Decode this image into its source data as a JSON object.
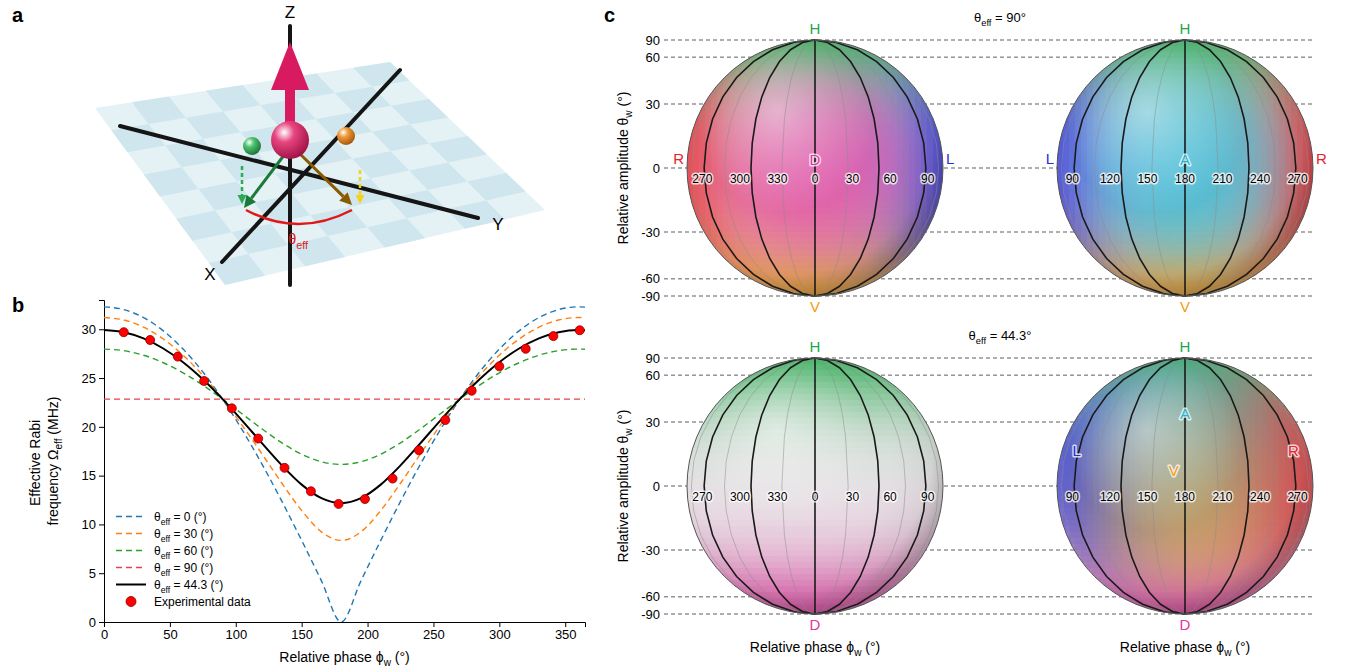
{
  "diagram": {
    "panel_label": "a",
    "axis_labels": {
      "z": "Z",
      "y": "Y",
      "x": "X"
    },
    "angle_label": "θeff"
  },
  "chart_data": {
    "panel_label": "b",
    "type": "line",
    "xlabel": "Relative phase ϕw (°)",
    "ylabel": "Effective Rabi frequency Ωeff (MHz)",
    "xlim": [
      0,
      365
    ],
    "ylim": [
      0,
      33
    ],
    "xticks": [
      0,
      50,
      100,
      150,
      200,
      250,
      300,
      350
    ],
    "yticks": [
      0,
      5,
      10,
      15,
      20,
      25,
      30
    ],
    "legend": "lower left",
    "x": [
      0,
      15,
      30,
      45,
      60,
      75,
      90,
      105,
      120,
      135,
      150,
      165,
      180,
      195,
      210,
      225,
      240,
      255,
      270,
      285,
      300,
      315,
      330,
      345,
      360,
      365
    ],
    "series": [
      {
        "name": "θeff = 0 (°)",
        "color": "#1f77b4",
        "line_style": "dashed",
        "values": [
          32.3,
          32.02,
          31.2,
          29.84,
          27.97,
          25.63,
          22.84,
          19.66,
          16.15,
          12.36,
          8.36,
          4.22,
          0,
          4.22,
          8.36,
          12.36,
          16.15,
          19.66,
          22.84,
          25.63,
          27.97,
          29.84,
          31.2,
          32.02,
          32.3,
          32.27
        ]
      },
      {
        "name": "θeff = 30 (°)",
        "color": "#ff7f0e",
        "line_style": "dashed",
        "values": [
          31.2,
          30.95,
          30.21,
          29.0,
          27.34,
          25.27,
          22.84,
          20.12,
          17.2,
          14.22,
          11.42,
          9.24,
          8.36,
          9.24,
          11.42,
          14.22,
          17.2,
          20.12,
          22.84,
          25.27,
          27.34,
          29.0,
          30.21,
          30.95,
          31.2,
          31.17
        ]
      },
      {
        "name": "θeff = 60 (°)",
        "color": "#2ca02c",
        "line_style": "dashed",
        "values": [
          27.97,
          27.81,
          27.34,
          26.57,
          25.54,
          24.27,
          22.84,
          21.31,
          19.78,
          18.36,
          17.2,
          16.42,
          16.15,
          16.42,
          17.2,
          18.36,
          19.78,
          21.31,
          22.84,
          24.27,
          25.54,
          26.57,
          27.34,
          27.81,
          27.97,
          27.96
        ]
      },
      {
        "name": "θeff = 90 (°)",
        "color": "#e8414e",
        "line_style": "dashed",
        "values": [
          22.84,
          22.84,
          22.84,
          22.84,
          22.84,
          22.84,
          22.84,
          22.84,
          22.84,
          22.84,
          22.84,
          22.84,
          22.84,
          22.84,
          22.84,
          22.84,
          22.84,
          22.84,
          22.84,
          22.84,
          22.84,
          22.84,
          22.84,
          22.84,
          22.84,
          22.84
        ]
      },
      {
        "name": "θeff = 44.3 (°)",
        "color": "#000000",
        "line_style": "solid",
        "values": [
          29.92,
          29.7,
          29.07,
          28.03,
          26.62,
          24.87,
          22.84,
          20.62,
          18.3,
          16.05,
          14.08,
          12.69,
          12.18,
          12.69,
          14.08,
          16.05,
          18.3,
          20.62,
          22.84,
          24.87,
          26.62,
          28.03,
          29.07,
          29.7,
          29.92,
          29.89
        ]
      },
      {
        "name": "Experimental data",
        "type": "scatter",
        "marker": "circle",
        "color": "#ff0000",
        "x": [
          15,
          35,
          56,
          76,
          97,
          117,
          137,
          157,
          178,
          198,
          219,
          239,
          259,
          279,
          300,
          320,
          341,
          361
        ],
        "values": [
          29.7,
          28.9,
          27.2,
          24.7,
          21.9,
          18.8,
          15.8,
          13.4,
          12.1,
          12.6,
          14.7,
          17.6,
          20.7,
          23.7,
          26.2,
          28.0,
          29.3,
          29.9
        ]
      }
    ]
  },
  "spheres": {
    "panel_label": "c",
    "ylabel": "Relative amplitude θw (°)",
    "xlabel": "Relative phase ϕw (°)",
    "lat_ticks": [
      90,
      60,
      30,
      0,
      -30,
      -60,
      -90
    ],
    "rows": [
      {
        "title": "θeff = 90°",
        "spheres": [
          {
            "phase_ticks": [
              270,
              300,
              330,
              0,
              30,
              60,
              90
            ],
            "states": [
              {
                "label": "H",
                "lon": 0,
                "lat": 90,
                "color": "#22a84a"
              },
              {
                "label": "V",
                "lon": 0,
                "lat": -90,
                "color": "#f39c12"
              },
              {
                "label": "D",
                "lon": 0,
                "lat": 0,
                "color": "#e0389e"
              },
              {
                "label": "R",
                "lon": 270,
                "lat": 0,
                "color": "#e8212b"
              },
              {
                "label": "L",
                "lon": 90,
                "lat": 0,
                "color": "#2b2bd9"
              }
            ]
          },
          {
            "phase_ticks": [
              90,
              120,
              150,
              180,
              210,
              240,
              270
            ],
            "states": [
              {
                "label": "H",
                "lon": 180,
                "lat": 90,
                "color": "#22a84a"
              },
              {
                "label": "V",
                "lon": 180,
                "lat": -90,
                "color": "#f39c12"
              },
              {
                "label": "L",
                "lon": 90,
                "lat": 0,
                "color": "#2b2bd9"
              },
              {
                "label": "A",
                "lon": 180,
                "lat": 0,
                "color": "#1fb5d6"
              },
              {
                "label": "R",
                "lon": 270,
                "lat": 0,
                "color": "#e8212b"
              }
            ]
          }
        ]
      },
      {
        "title": "θeff = 44.3°",
        "spheres": [
          {
            "phase_ticks": [
              270,
              300,
              330,
              0,
              30,
              60,
              90
            ],
            "states": [
              {
                "label": "H",
                "lon": 0,
                "lat": 90,
                "color": "#22a84a"
              },
              {
                "label": "D",
                "lon": 0,
                "lat": -90,
                "color": "#e0389e"
              }
            ]
          },
          {
            "phase_ticks": [
              90,
              120,
              150,
              180,
              210,
              240,
              270
            ],
            "states": [
              {
                "label": "H",
                "lon": 180,
                "lat": 90,
                "color": "#22a84a"
              },
              {
                "label": "D",
                "lon": 180,
                "lat": -90,
                "color": "#e0389e"
              },
              {
                "label": "L",
                "lon": 120,
                "lat": 12,
                "color": "#2b2bd9"
              },
              {
                "label": "A",
                "lon": 180,
                "lat": 30,
                "color": "#1fb5d6"
              },
              {
                "label": "R",
                "lon": 240,
                "lat": 12,
                "color": "#e8212b"
              },
              {
                "label": "V",
                "lon": 175,
                "lat": 3,
                "color": "#f39c12"
              }
            ]
          }
        ]
      }
    ]
  }
}
